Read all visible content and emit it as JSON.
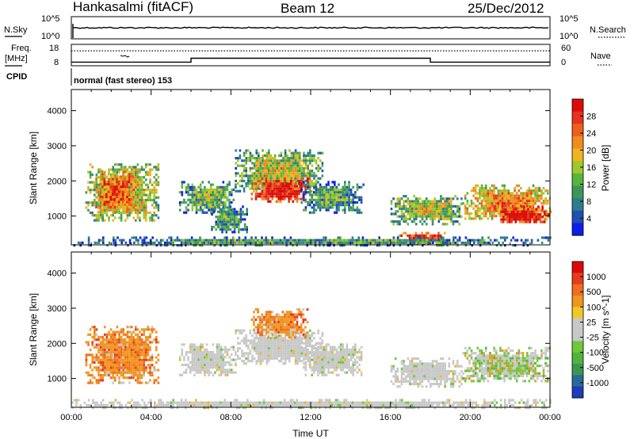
{
  "header": {
    "station": "Hankasalmi (fitACF)",
    "beam": "Beam 12",
    "date": "25/Dec/2012"
  },
  "top_panels": {
    "nsky_label": "N.Sky",
    "nsearch_label": "N.Search",
    "nsky_ticks": [
      "10^5",
      "10^0"
    ],
    "nsearch_ticks": [
      "10^5",
      "10^0"
    ],
    "freq_label": "Freq.",
    "freq_unit": "[MHz]",
    "freq_ticks": [
      "18",
      "8"
    ],
    "nave_label": "Nave",
    "nave_ticks": [
      "60",
      "0"
    ],
    "cpid_label": "CPID",
    "cpid_text": "normal (fast stereo) 153"
  },
  "chart_data": [
    {
      "type": "heatmap",
      "name": "power-panel",
      "xlabel": "Time UT",
      "ylabel": "Slant Range [km]",
      "colorbar_label": "Power [dB]",
      "x_ticks": [
        "00:00",
        "04:00",
        "08:00",
        "12:00",
        "16:00",
        "20:00",
        "00:00"
      ],
      "xlim_hours": [
        0,
        24
      ],
      "y_ticks": [
        1000,
        2000,
        3000,
        4000
      ],
      "ylim": [
        180,
        4600
      ],
      "colorbar_ticks": [
        "28",
        "24",
        "20",
        "16",
        "12",
        "8",
        "4"
      ],
      "colorbar_colors": [
        "#0f1ee6",
        "#1e50b4",
        "#2e7d8c",
        "#3c965a",
        "#5ab43c",
        "#a0c828",
        "#f0b41e",
        "#f08c1e",
        "#ee5f1e",
        "#e6321e",
        "#dc0a0a"
      ],
      "regions": [
        {
          "t0": 0.7,
          "t1": 4.4,
          "r0": 850,
          "r1": 2500,
          "level": 0.55
        },
        {
          "t0": 1.2,
          "t1": 3.2,
          "r0": 1100,
          "r1": 2300,
          "level": 0.75
        },
        {
          "t0": 5.4,
          "t1": 8.2,
          "r0": 1100,
          "r1": 2000,
          "level": 0.35
        },
        {
          "t0": 7.0,
          "t1": 8.8,
          "r0": 550,
          "r1": 1300,
          "level": 0.3
        },
        {
          "t0": 8.2,
          "t1": 12.6,
          "r0": 1700,
          "r1": 2900,
          "level": 0.45
        },
        {
          "t0": 9.0,
          "t1": 12.0,
          "r0": 1400,
          "r1": 2100,
          "level": 0.9
        },
        {
          "t0": 11.5,
          "t1": 14.6,
          "r0": 1100,
          "r1": 2000,
          "level": 0.3
        },
        {
          "t0": 16.0,
          "t1": 19.6,
          "r0": 800,
          "r1": 1600,
          "level": 0.45
        },
        {
          "t0": 16.4,
          "t1": 18.8,
          "r0": 250,
          "r1": 550,
          "level": 0.88
        },
        {
          "t0": 19.6,
          "t1": 24.0,
          "r0": 900,
          "r1": 1900,
          "level": 0.65
        },
        {
          "t0": 21.2,
          "t1": 24.0,
          "r0": 800,
          "r1": 1300,
          "level": 0.92
        },
        {
          "t0": 0.0,
          "t1": 24.0,
          "r0": 200,
          "r1": 420,
          "level": 0.3
        }
      ]
    },
    {
      "type": "heatmap",
      "name": "velocity-panel",
      "xlabel": "Time UT",
      "ylabel": "Slant Range [km]",
      "colorbar_label": "Velocity [m s^-1]",
      "x_ticks": [
        "00:00",
        "04:00",
        "08:00",
        "12:00",
        "16:00",
        "20:00",
        "00:00"
      ],
      "xlim_hours": [
        0,
        24
      ],
      "y_ticks": [
        1000,
        2000,
        3000,
        4000
      ],
      "ylim": [
        180,
        4600
      ],
      "colorbar_ticks": [
        "1000",
        "500",
        "100",
        "25",
        "-25",
        "-100",
        "-500",
        "-1000"
      ],
      "colorbar_colors": [
        "#1e3cb4",
        "#2a6a9a",
        "#3c9650",
        "#50b43c",
        "#6ec83c",
        "#c8c8c8",
        "#c8c8c8",
        "#f0c828",
        "#f0961e",
        "#f06e1e",
        "#e63c1e",
        "#dc0a0a"
      ],
      "regions": [
        {
          "t0": 0.7,
          "t1": 4.4,
          "r0": 850,
          "r1": 2500,
          "vel": "orange"
        },
        {
          "t0": 5.4,
          "t1": 8.2,
          "r0": 1100,
          "r1": 2000,
          "vel": "ground"
        },
        {
          "t0": 8.2,
          "t1": 12.6,
          "r0": 1400,
          "r1": 2400,
          "vel": "ground"
        },
        {
          "t0": 9.0,
          "t1": 11.8,
          "r0": 2200,
          "r1": 3000,
          "vel": "orange"
        },
        {
          "t0": 11.5,
          "t1": 14.6,
          "r0": 1100,
          "r1": 2000,
          "vel": "ground"
        },
        {
          "t0": 16.0,
          "t1": 19.6,
          "r0": 800,
          "r1": 1600,
          "vel": "ground"
        },
        {
          "t0": 19.6,
          "t1": 24.0,
          "r0": 900,
          "r1": 1900,
          "vel": "mixed"
        },
        {
          "t0": 0.0,
          "t1": 24.0,
          "r0": 200,
          "r1": 420,
          "vel": "ground"
        }
      ]
    }
  ],
  "freq_series": {
    "x": [
      0,
      6,
      6,
      18,
      18,
      24
    ],
    "y": [
      9.7,
      9.7,
      11.5,
      11.5,
      9.7,
      9.7
    ]
  },
  "nave_series": {
    "x": [
      0,
      24
    ],
    "y": [
      42,
      42
    ]
  }
}
